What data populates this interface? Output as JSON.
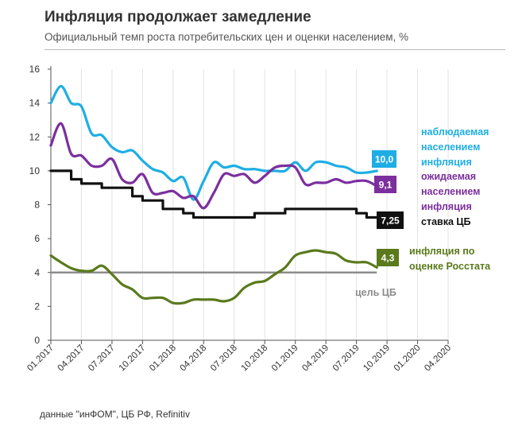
{
  "header": {
    "title": "Инфляция продолжает замедление",
    "subtitle": "Официальный темп роста потребительских цен и оценки населением, %"
  },
  "source": "данные \"инФОМ\", ЦБ РФ, Refinitiv",
  "chart_data": {
    "type": "line",
    "title": "Инфляция продолжает замедление",
    "subtitle": "Официальный темп роста потребительских цен и оценки населением, %",
    "xlabel": "",
    "ylabel": "%",
    "ylim": [
      0,
      16
    ],
    "yticks": [
      0,
      2,
      4,
      6,
      8,
      10,
      12,
      14,
      16
    ],
    "xlim": [
      0,
      39
    ],
    "xticks": [
      {
        "label": "01.2017",
        "x": 0
      },
      {
        "label": "04.2017",
        "x": 3
      },
      {
        "label": "07.2017",
        "x": 6
      },
      {
        "label": "10.2017",
        "x": 9
      },
      {
        "label": "01.2018",
        "x": 12
      },
      {
        "label": "04.2018",
        "x": 15
      },
      {
        "label": "07.2018",
        "x": 18
      },
      {
        "label": "10.2018",
        "x": 21
      },
      {
        "label": "01.2019",
        "x": 24
      },
      {
        "label": "04.2019",
        "x": 27
      },
      {
        "label": "07.2019",
        "x": 30
      },
      {
        "label": "10.2019",
        "x": 33
      },
      {
        "label": "01.2020",
        "x": 36
      },
      {
        "label": "04.2020",
        "x": 39
      }
    ],
    "grid": "vertical",
    "series": [
      {
        "name": "наблюдаемая населением инфляция",
        "color": "#1eaee4",
        "label_lines": [
          "наблюдаемая",
          "населением",
          "инфляция"
        ],
        "end_value": "10,0",
        "x": [
          0,
          1,
          2,
          3,
          4,
          5,
          6,
          7,
          8,
          9,
          10,
          11,
          12,
          13,
          14,
          15,
          16,
          17,
          18,
          19,
          20,
          21,
          22,
          23,
          24,
          25,
          26,
          27,
          28,
          29,
          30,
          31,
          32
        ],
        "values": [
          14.0,
          15.0,
          14.0,
          13.8,
          12.2,
          12.1,
          11.4,
          11.1,
          11.2,
          10.6,
          10.1,
          9.9,
          9.4,
          9.6,
          8.3,
          9.4,
          10.5,
          10.2,
          10.3,
          10.1,
          10.1,
          10.0,
          10.0,
          10.0,
          10.5,
          10.0,
          10.5,
          10.5,
          10.3,
          10.2,
          9.9,
          9.9,
          10.0
        ]
      },
      {
        "name": "ожидаемая населением инфляция",
        "color": "#7b2f9e",
        "label_lines": [
          "ожидаемая",
          "населением",
          "инфляция"
        ],
        "end_value": "9,1",
        "x": [
          0,
          1,
          2,
          3,
          4,
          5,
          6,
          7,
          8,
          9,
          10,
          11,
          12,
          13,
          14,
          15,
          16,
          17,
          18,
          19,
          20,
          21,
          22,
          23,
          24,
          25,
          26,
          27,
          28,
          29,
          30,
          31,
          32
        ],
        "values": [
          11.5,
          12.8,
          11.0,
          10.9,
          10.3,
          10.3,
          10.7,
          9.5,
          9.3,
          9.8,
          8.7,
          8.7,
          8.8,
          8.4,
          8.5,
          7.8,
          8.7,
          9.8,
          9.7,
          9.8,
          9.3,
          9.7,
          10.2,
          10.3,
          10.2,
          9.2,
          9.3,
          9.3,
          9.5,
          9.3,
          9.4,
          9.4,
          9.1
        ]
      },
      {
        "name": "ставка ЦБ",
        "color": "#111111",
        "label_lines": [
          "ставка ЦБ"
        ],
        "end_value": "7,25",
        "x": [
          0,
          1,
          2,
          3,
          4,
          5,
          6,
          7,
          8,
          9,
          10,
          11,
          12,
          13,
          14,
          15,
          16,
          17,
          18,
          19,
          20,
          21,
          22,
          23,
          24,
          25,
          26,
          27,
          28,
          29,
          30,
          31,
          32
        ],
        "values": [
          10.0,
          10.0,
          9.5,
          9.25,
          9.25,
          9.0,
          9.0,
          9.0,
          8.5,
          8.25,
          8.25,
          7.75,
          7.75,
          7.5,
          7.25,
          7.25,
          7.25,
          7.25,
          7.25,
          7.25,
          7.5,
          7.5,
          7.5,
          7.75,
          7.75,
          7.75,
          7.75,
          7.75,
          7.75,
          7.75,
          7.5,
          7.25,
          7.25
        ]
      },
      {
        "name": "инфляция по оценке Росстата",
        "color": "#5a7a1c",
        "label_lines": [
          "инфляция по",
          "оценке Росстата"
        ],
        "end_value": "4,3",
        "x": [
          0,
          1,
          2,
          3,
          4,
          5,
          6,
          7,
          8,
          9,
          10,
          11,
          12,
          13,
          14,
          15,
          16,
          17,
          18,
          19,
          20,
          21,
          22,
          23,
          24,
          25,
          26,
          27,
          28,
          29,
          30,
          31,
          32
        ],
        "values": [
          5.0,
          4.6,
          4.25,
          4.1,
          4.1,
          4.4,
          3.9,
          3.3,
          3.0,
          2.5,
          2.5,
          2.5,
          2.2,
          2.2,
          2.4,
          2.4,
          2.4,
          2.3,
          2.5,
          3.1,
          3.4,
          3.5,
          3.9,
          4.3,
          5.0,
          5.2,
          5.3,
          5.2,
          5.1,
          4.7,
          4.6,
          4.6,
          4.3
        ]
      }
    ],
    "reference_lines": [
      {
        "name": "цель ЦБ",
        "label": "цель ЦБ",
        "value": 4,
        "color": "#8c8c8c"
      }
    ]
  }
}
